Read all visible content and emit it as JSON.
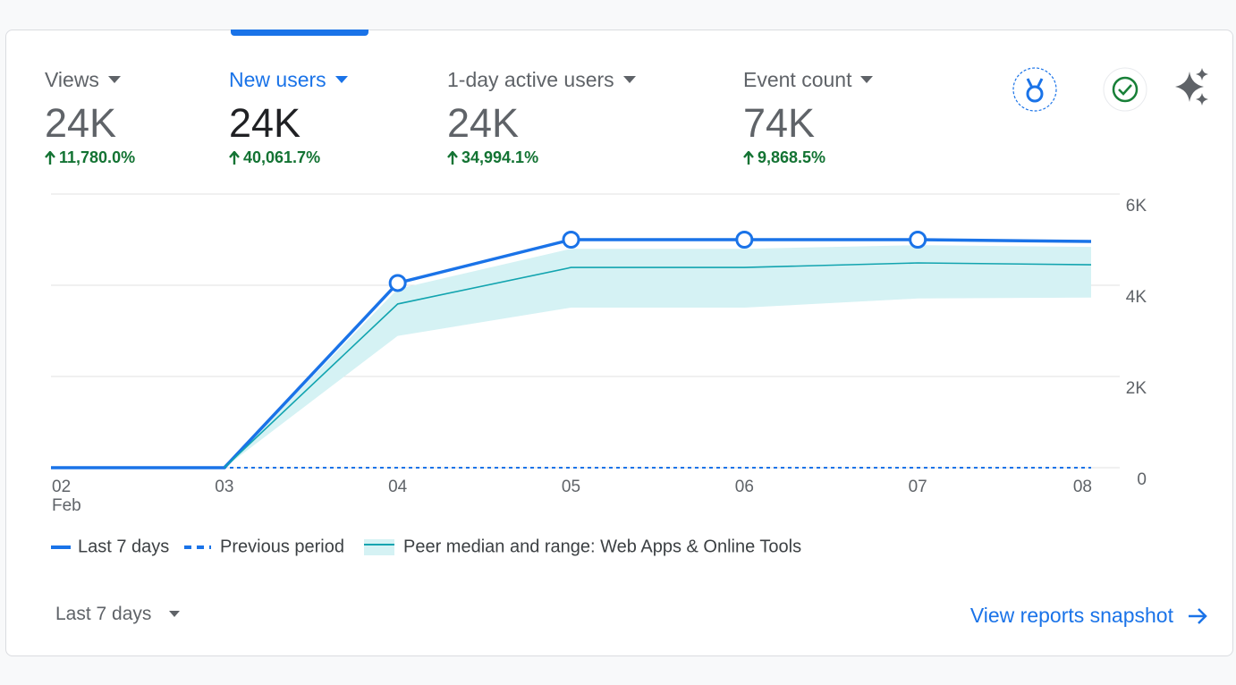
{
  "metrics": [
    {
      "label": "Views",
      "value": "24K",
      "change": "11,780.0%"
    },
    {
      "label": "New users",
      "value": "24K",
      "change": "40,061.7%"
    },
    {
      "label": "1-day active users",
      "value": "24K",
      "change": "34,994.1%"
    },
    {
      "label": "Event count",
      "value": "74K",
      "change": "9,868.5%"
    }
  ],
  "selected_metric": 1,
  "chart_data": {
    "type": "line",
    "categories": [
      "02",
      "03",
      "04",
      "05",
      "06",
      "07",
      "08"
    ],
    "first_category_month": "Feb",
    "series": [
      {
        "name": "Last 7 days",
        "color": "#1a73e8",
        "style": "solid",
        "values": [
          0,
          0,
          4050,
          5000,
          5000,
          5000,
          4960
        ]
      },
      {
        "name": "Previous period",
        "color": "#1a73e8",
        "style": "dashed",
        "values": [
          0,
          0,
          0,
          0,
          0,
          0,
          0
        ]
      },
      {
        "name": "Peer median and range: Web Apps & Online Tools",
        "color": "#12a4af",
        "band_color": "#d5f2f4",
        "style": "band",
        "values": [
          null,
          0,
          3590,
          4390,
          4390,
          4490,
          4450
        ],
        "lower": [
          null,
          0,
          2890,
          3510,
          3510,
          3710,
          3730
        ],
        "upper": [
          null,
          0,
          3920,
          4800,
          4800,
          4880,
          4840
        ]
      }
    ],
    "ylim": [
      0,
      6000
    ],
    "yticks": [
      0,
      {
        "value": 2000,
        "label": "2K"
      },
      {
        "value": 4000,
        "label": "4K"
      },
      {
        "value": 6000,
        "label": "6K"
      }
    ],
    "grid": true,
    "y_axis_side": "right"
  },
  "footer": {
    "date_range": "Last 7 days",
    "link": "View reports snapshot"
  }
}
